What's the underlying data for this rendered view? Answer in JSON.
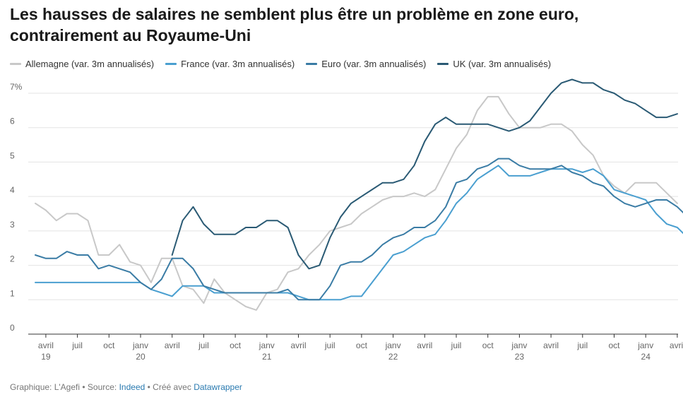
{
  "title": "Les hausses de salaires ne semblent plus être un problème en zone euro, contrairement au Royaume-Uni",
  "footer": {
    "prefix": "Graphique: L'Agefi • Source: ",
    "source": "Indeed",
    "middle": " • Créé avec ",
    "tool": "Datawrapper"
  },
  "colors": {
    "Allemagne": "#c8c8c8",
    "France": "#4a9fd0",
    "Euro": "#3a7ca5",
    "UK": "#2a5a74",
    "grid": "#e3e3e3",
    "axis": "#333333"
  },
  "chart_data": {
    "type": "line",
    "x_start": "2019-03",
    "grid": true,
    "legend_position": "top-left",
    "ylim": [
      0,
      7
    ],
    "yticks": [
      0,
      1,
      2,
      3,
      4,
      5,
      6,
      7
    ],
    "ytick_labels": [
      "0",
      "1",
      "2",
      "3",
      "4",
      "5",
      "6",
      "7%"
    ],
    "xticks": [
      {
        "label": "avril",
        "year": "19",
        "index": 1
      },
      {
        "label": "juil",
        "year": "",
        "index": 4
      },
      {
        "label": "oct",
        "year": "",
        "index": 7
      },
      {
        "label": "janv",
        "year": "20",
        "index": 10
      },
      {
        "label": "avril",
        "year": "",
        "index": 13
      },
      {
        "label": "juil",
        "year": "",
        "index": 16
      },
      {
        "label": "oct",
        "year": "",
        "index": 19
      },
      {
        "label": "janv",
        "year": "21",
        "index": 22
      },
      {
        "label": "avril",
        "year": "",
        "index": 25
      },
      {
        "label": "juil",
        "year": "",
        "index": 28
      },
      {
        "label": "oct",
        "year": "",
        "index": 31
      },
      {
        "label": "janv",
        "year": "22",
        "index": 34
      },
      {
        "label": "avril",
        "year": "",
        "index": 37
      },
      {
        "label": "juil",
        "year": "",
        "index": 40
      },
      {
        "label": "oct",
        "year": "",
        "index": 43
      },
      {
        "label": "janv",
        "year": "23",
        "index": 46
      },
      {
        "label": "avril",
        "year": "",
        "index": 49
      },
      {
        "label": "juil",
        "year": "",
        "index": 52
      },
      {
        "label": "oct",
        "year": "",
        "index": 55
      },
      {
        "label": "janv",
        "year": "24",
        "index": 58
      },
      {
        "label": "avril",
        "year": "",
        "index": 61
      }
    ],
    "series": [
      {
        "name": "Allemagne (var. 3m annualisés)",
        "key": "Allemagne",
        "start": 0,
        "values": [
          3.8,
          3.6,
          3.3,
          3.5,
          3.5,
          3.3,
          2.3,
          2.3,
          2.6,
          2.1,
          2.0,
          1.5,
          2.2,
          2.2,
          1.4,
          1.3,
          0.9,
          1.6,
          1.2,
          1.0,
          0.8,
          0.7,
          1.2,
          1.3,
          1.8,
          1.9,
          2.3,
          2.6,
          3.0,
          3.1,
          3.2,
          3.5,
          3.7,
          3.9,
          4.0,
          4.0,
          4.1,
          4.0,
          4.2,
          4.8,
          5.4,
          5.8,
          6.5,
          6.9,
          6.9,
          6.4,
          6.0,
          6.0,
          6.0,
          6.1,
          6.1,
          5.9,
          5.5,
          5.2,
          4.6,
          4.3,
          4.1,
          4.4,
          4.4,
          4.4,
          4.1,
          3.8
        ]
      },
      {
        "name": "France (var. 3m annualisés)",
        "key": "France",
        "start": 0,
        "values": [
          1.5,
          1.5,
          1.5,
          1.5,
          1.5,
          1.5,
          1.5,
          1.5,
          1.5,
          1.5,
          1.5,
          1.3,
          1.2,
          1.1,
          1.4,
          1.4,
          1.4,
          1.2,
          1.2,
          1.2,
          1.2,
          1.2,
          1.2,
          1.2,
          1.2,
          1.1,
          1.0,
          1.0,
          1.0,
          1.0,
          1.1,
          1.1,
          1.5,
          1.9,
          2.3,
          2.4,
          2.6,
          2.8,
          2.9,
          3.3,
          3.8,
          4.1,
          4.5,
          4.7,
          4.9,
          4.6,
          4.6,
          4.6,
          4.7,
          4.8,
          4.8,
          4.8,
          4.7,
          4.8,
          4.6,
          4.2,
          4.1,
          4.0,
          3.9,
          3.5,
          3.2,
          3.1,
          2.8
        ]
      },
      {
        "name": "Euro (var. 3m annualisés)",
        "key": "Euro",
        "start": 0,
        "values": [
          2.3,
          2.2,
          2.2,
          2.4,
          2.3,
          2.3,
          1.9,
          2.0,
          1.9,
          1.8,
          1.5,
          1.3,
          1.6,
          2.2,
          2.2,
          1.9,
          1.4,
          1.3,
          1.2,
          1.2,
          1.2,
          1.2,
          1.2,
          1.2,
          1.3,
          1.0,
          1.0,
          1.0,
          1.4,
          2.0,
          2.1,
          2.1,
          2.3,
          2.6,
          2.8,
          2.9,
          3.1,
          3.1,
          3.3,
          3.7,
          4.4,
          4.5,
          4.8,
          4.9,
          5.1,
          5.1,
          4.9,
          4.8,
          4.8,
          4.8,
          4.9,
          4.7,
          4.6,
          4.4,
          4.3,
          4.0,
          3.8,
          3.7,
          3.8,
          3.9,
          3.9,
          3.7,
          3.4
        ]
      },
      {
        "name": "UK (var. 3m annualisés)",
        "key": "UK",
        "start": 13,
        "values": [
          2.3,
          3.3,
          3.7,
          3.2,
          2.9,
          2.9,
          2.9,
          3.1,
          3.1,
          3.3,
          3.3,
          3.1,
          2.3,
          1.9,
          2.0,
          2.8,
          3.4,
          3.8,
          4.0,
          4.2,
          4.4,
          4.4,
          4.5,
          4.9,
          5.6,
          6.1,
          6.3,
          6.1,
          6.1,
          6.1,
          6.1,
          6.0,
          5.9,
          6.0,
          6.2,
          6.6,
          7.0,
          7.3,
          7.4,
          7.3,
          7.3,
          7.1,
          7.0,
          6.8,
          6.7,
          6.5,
          6.3,
          6.3,
          6.4
        ]
      }
    ]
  }
}
